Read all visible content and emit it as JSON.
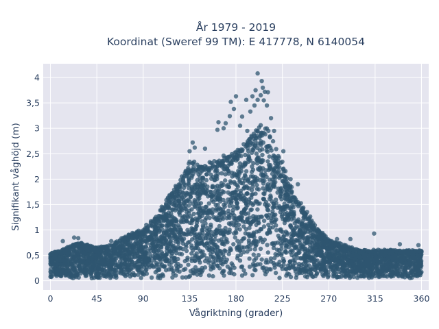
{
  "chart_data": {
    "type": "scatter",
    "title_lines": [
      "År 1979 - 2019",
      "Koordinat (Sweref 99 TM): E 417778, N 6140054"
    ],
    "xlabel": "Vågriktning (grader)",
    "ylabel": "Signifikant våghöjd (m)",
    "xlim": [
      -7,
      367
    ],
    "ylim": [
      -0.18,
      4.27
    ],
    "x_ticks": [
      0,
      45,
      90,
      135,
      180,
      225,
      270,
      315,
      360
    ],
    "x_tick_labels": [
      "0",
      "45",
      "90",
      "135",
      "180",
      "225",
      "270",
      "315",
      "360"
    ],
    "y_ticks": [
      0,
      0.5,
      1,
      1.5,
      2,
      2.5,
      3,
      3.5,
      4
    ],
    "y_tick_labels": [
      "0",
      "0,5",
      "1",
      "1,5",
      "2",
      "2,5",
      "3",
      "3,5",
      "4"
    ],
    "grid": true,
    "legend": false,
    "marker_color": "#2f5670",
    "marker_opacity": 0.75,
    "background_color": "#e5e5ef",
    "envelope": {
      "direction_deg": [
        0,
        10,
        20,
        30,
        45,
        60,
        75,
        90,
        100,
        110,
        120,
        130,
        135,
        140,
        150,
        160,
        170,
        180,
        190,
        200,
        205,
        210,
        220,
        225,
        230,
        240,
        250,
        260,
        270,
        285,
        300,
        315,
        330,
        345,
        360
      ],
      "max_height_m": [
        0.55,
        0.6,
        0.7,
        0.75,
        0.65,
        0.7,
        0.9,
        1.0,
        1.2,
        1.5,
        1.8,
        2.1,
        2.35,
        2.3,
        2.25,
        2.35,
        2.45,
        2.55,
        2.7,
        3.0,
        3.1,
        3.0,
        2.5,
        2.3,
        2.0,
        1.6,
        1.3,
        1.0,
        0.8,
        0.7,
        0.6,
        0.6,
        0.6,
        0.6,
        0.6
      ],
      "min_height_m": 0.05
    },
    "outliers": [
      {
        "x": 201,
        "y": 4.08
      },
      {
        "x": 205,
        "y": 3.93
      },
      {
        "x": 206,
        "y": 3.8
      },
      {
        "x": 208,
        "y": 3.72
      },
      {
        "x": 199,
        "y": 3.75
      },
      {
        "x": 211,
        "y": 3.71
      },
      {
        "x": 196,
        "y": 3.63
      },
      {
        "x": 204,
        "y": 3.65
      },
      {
        "x": 207,
        "y": 3.55
      },
      {
        "x": 201,
        "y": 3.56
      },
      {
        "x": 210,
        "y": 3.45
      },
      {
        "x": 190,
        "y": 3.56
      },
      {
        "x": 175,
        "y": 3.52
      },
      {
        "x": 180,
        "y": 3.63
      },
      {
        "x": 178,
        "y": 3.38
      },
      {
        "x": 174,
        "y": 3.24
      },
      {
        "x": 186,
        "y": 3.23
      },
      {
        "x": 198,
        "y": 3.45
      },
      {
        "x": 194,
        "y": 3.33
      },
      {
        "x": 163,
        "y": 3.12
      },
      {
        "x": 170,
        "y": 3.1
      },
      {
        "x": 184,
        "y": 3.05
      },
      {
        "x": 214,
        "y": 3.2
      },
      {
        "x": 162,
        "y": 2.97
      },
      {
        "x": 168,
        "y": 3.0
      },
      {
        "x": 191,
        "y": 2.95
      },
      {
        "x": 217,
        "y": 2.95
      },
      {
        "x": 226,
        "y": 2.55
      },
      {
        "x": 140,
        "y": 2.62
      },
      {
        "x": 150,
        "y": 2.6
      },
      {
        "x": 138,
        "y": 2.72
      },
      {
        "x": 135,
        "y": 2.55
      },
      {
        "x": 233,
        "y": 2.0
      },
      {
        "x": 240,
        "y": 1.9
      },
      {
        "x": 232,
        "y": 1.65
      },
      {
        "x": 238,
        "y": 1.6
      },
      {
        "x": 108,
        "y": 1.38
      },
      {
        "x": 93,
        "y": 1.1
      },
      {
        "x": 278,
        "y": 0.82
      },
      {
        "x": 291,
        "y": 0.82
      },
      {
        "x": 339,
        "y": 0.72
      },
      {
        "x": 23,
        "y": 0.85
      },
      {
        "x": 27,
        "y": 0.84
      },
      {
        "x": 12,
        "y": 0.78
      },
      {
        "x": 314,
        "y": 0.93
      },
      {
        "x": 59,
        "y": 0.78
      },
      {
        "x": 357,
        "y": 0.7
      },
      {
        "x": 264,
        "y": 0.94
      }
    ]
  }
}
